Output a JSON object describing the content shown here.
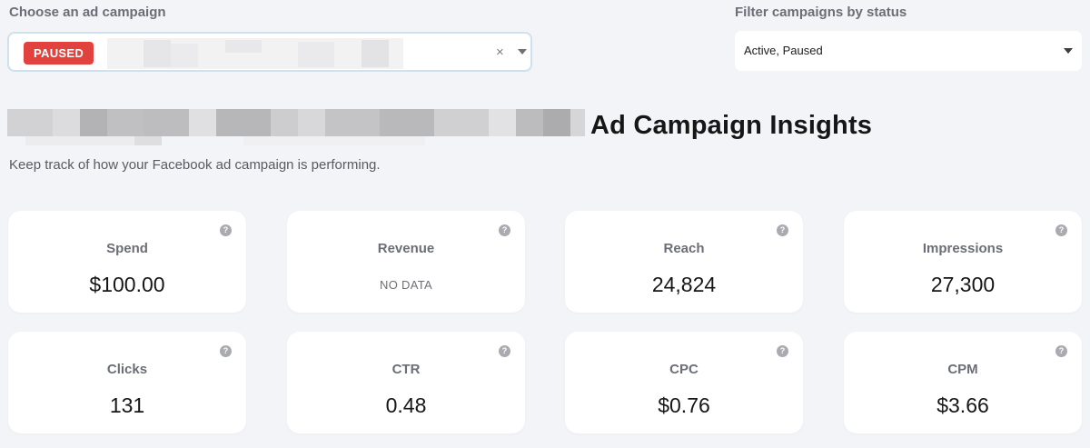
{
  "campaign_selector": {
    "label": "Choose an ad campaign",
    "badge": "PAUSED",
    "clear": "×",
    "badge_color": "#e2423d"
  },
  "status_filter": {
    "label": "Filter campaigns by status",
    "value": "Active, Paused"
  },
  "header": {
    "title": "Ad Campaign Insights",
    "subtitle": "Keep track of how your Facebook ad campaign is performing."
  },
  "metrics": [
    {
      "label": "Spend",
      "value": "$100.00",
      "help": "?"
    },
    {
      "label": "Revenue",
      "value": "NO DATA",
      "help": "?"
    },
    {
      "label": "Reach",
      "value": "24,824",
      "help": "?"
    },
    {
      "label": "Impressions",
      "value": "27,300",
      "help": "?"
    },
    {
      "label": "Clicks",
      "value": "131",
      "help": "?"
    },
    {
      "label": "CTR",
      "value": "0.48",
      "help": "?"
    },
    {
      "label": "CPC",
      "value": "$0.76",
      "help": "?"
    },
    {
      "label": "CPM",
      "value": "$3.66",
      "help": "?"
    }
  ],
  "icons": {
    "help": "question-circle-icon",
    "caret": "chevron-down-icon",
    "clear": "close-icon"
  }
}
